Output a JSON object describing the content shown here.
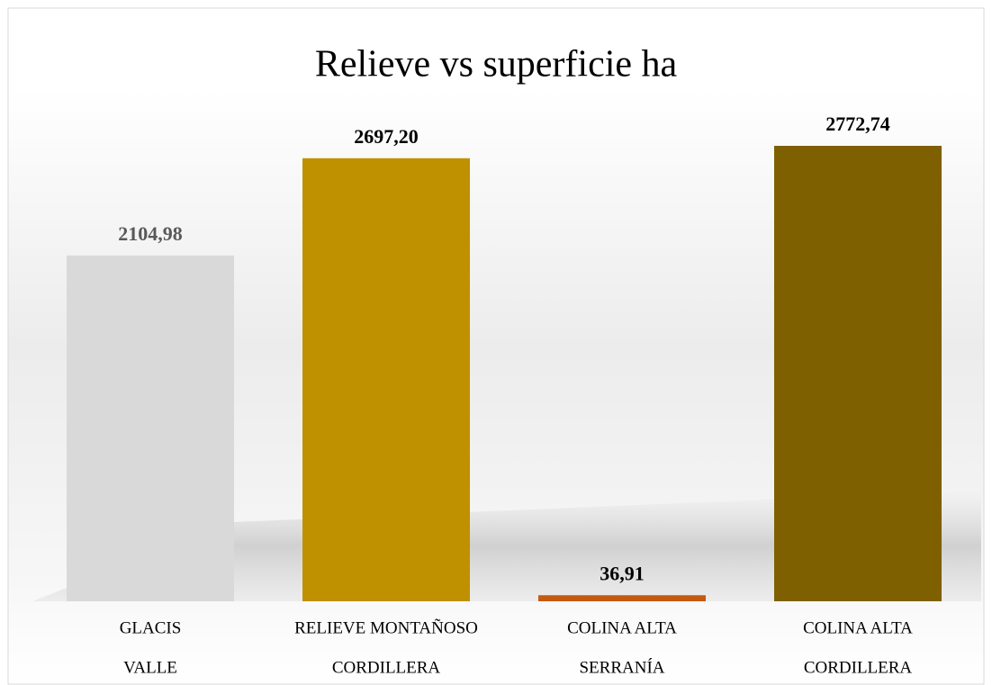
{
  "chart_data": {
    "type": "bar",
    "title": "Relieve vs superficie ha",
    "categories": [
      [
        "GLACIS",
        "VALLE"
      ],
      [
        "RELIEVE MONTAÑOSO",
        "CORDILLERA"
      ],
      [
        "COLINA ALTA",
        "SERRANÍA"
      ],
      [
        "COLINA ALTA",
        "CORDILLERA"
      ]
    ],
    "values": [
      2104.98,
      2697.2,
      36.91,
      2772.74
    ],
    "value_labels": [
      "2104,98",
      "2697,20",
      "36,91",
      "2772,74"
    ],
    "colors": [
      "#d9d9d9",
      "#bf9000",
      "#c55a11",
      "#7f6000"
    ],
    "value_label_colors": [
      "#595959",
      "#000000",
      "#000000",
      "#000000"
    ]
  }
}
